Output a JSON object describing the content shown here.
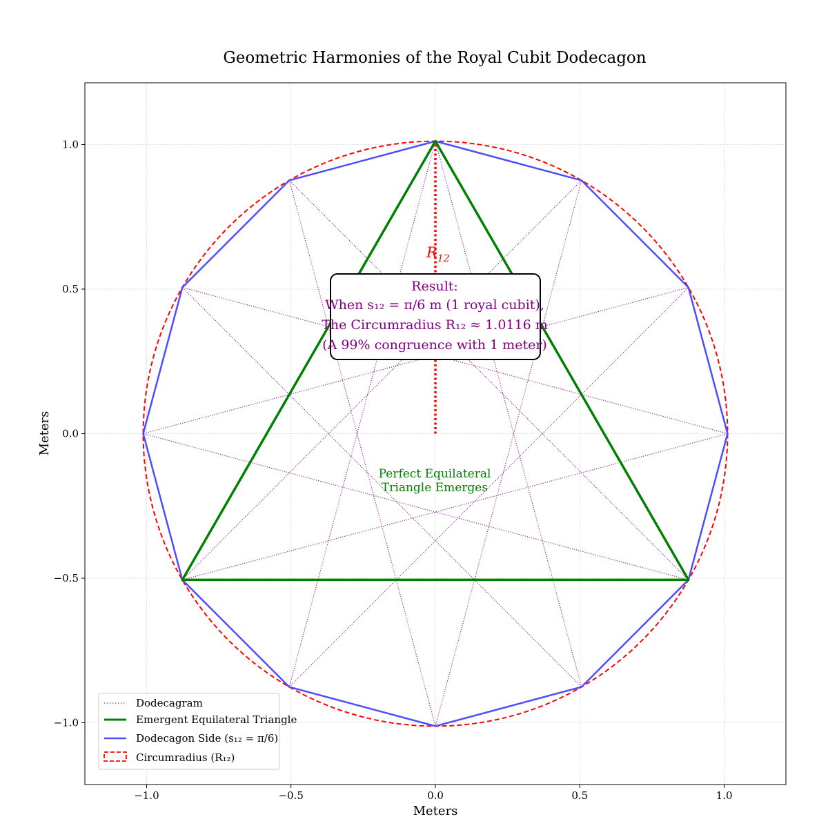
{
  "chart_data": {
    "type": "line",
    "title": "Geometric Harmonies of the Royal Cubit Dodecagon",
    "xlabel": "Meters",
    "ylabel": "Meters",
    "xlim": [
      -1.2136,
      1.2136
    ],
    "ylim": [
      -1.2136,
      1.2136
    ],
    "xticks": [
      -1.0,
      -0.5,
      0.0,
      0.5,
      1.0
    ],
    "yticks": [
      -1.0,
      -0.5,
      0.0,
      0.5,
      1.0
    ],
    "xtick_labels": [
      "−1.0",
      "−0.5",
      "0.0",
      "0.5",
      "1.0"
    ],
    "ytick_labels": [
      "−1.0",
      "−0.5",
      "0.0",
      "0.5",
      "1.0"
    ],
    "grid": true,
    "legend_position": "lower-left",
    "circumradius": 1.0116,
    "side_length": 0.5236,
    "n_sides": 12,
    "triangle_vertex_angles_deg": [
      90,
      210,
      330
    ],
    "series": [
      {
        "name": "Dodecagram",
        "color": "#800080",
        "style": "dotted",
        "description": "star {12/5}"
      },
      {
        "name": "Emergent Equilateral Triangle",
        "color": "#008000",
        "style": "solid"
      },
      {
        "name": "Dodecagon Side (s₁₂ = π/6)",
        "color": "#4d4dff",
        "style": "solid"
      },
      {
        "name": "Circumradius (R₁₂)",
        "color": "#ff0000",
        "style": "dashed"
      }
    ],
    "annotations": {
      "radius_label": "R₁₂",
      "result_lines": [
        "Result:",
        "When s₁₂ = π/6 m (1 royal cubit),",
        "The Circumradius R₁₂ ≈ 1.0116 m",
        "(A 99% congruence with 1 meter)"
      ],
      "triangle_label_lines": [
        "Perfect Equilateral",
        "Triangle Emerges"
      ]
    }
  },
  "colors": {
    "dodecagram": "#800080",
    "triangle": "#008000",
    "dodecagon": "#4d4dff",
    "circle": "#ff0000",
    "grid": "#cccccc"
  }
}
